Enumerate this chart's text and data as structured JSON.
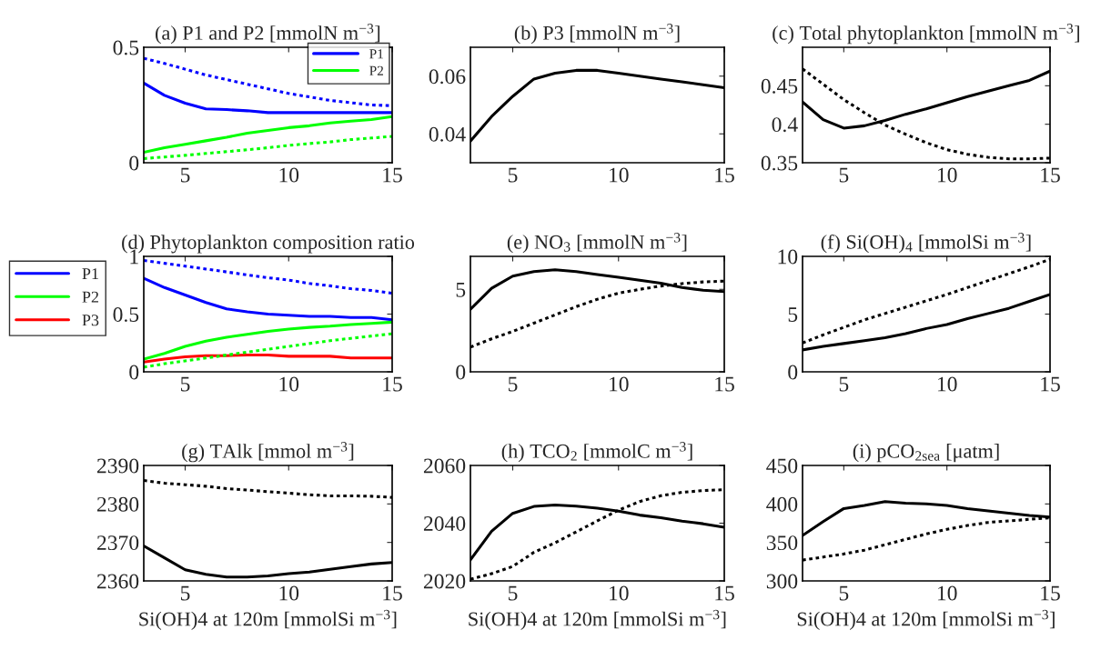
{
  "chart_data": [
    {
      "type": "line",
      "title": "(a) P1 and P2 [mmolN m$^{−3}$]",
      "x": [
        3,
        4,
        5,
        6,
        7,
        8,
        9,
        10,
        11,
        12,
        13,
        14,
        15
      ],
      "xlim": [
        3,
        15
      ],
      "xticks": [
        5,
        10,
        15
      ],
      "ylim": [
        0,
        0.5
      ],
      "yticks": [
        0,
        0.5
      ],
      "legend": "top right",
      "series": [
        {
          "name": "P1",
          "color": "#0000ff",
          "line_style": "solid",
          "values": [
            0.345,
            0.292,
            0.258,
            0.233,
            0.23,
            0.225,
            0.217,
            0.217,
            0.217,
            0.217,
            0.217,
            0.217,
            0.217
          ]
        },
        {
          "name": "P2",
          "color": "#00ff00",
          "line_style": "solid",
          "values": [
            0.045,
            0.065,
            0.08,
            0.095,
            0.11,
            0.128,
            0.14,
            0.152,
            0.16,
            0.172,
            0.18,
            0.187,
            0.2
          ]
        },
        {
          "color": "#0000ff",
          "line_style": "dotted",
          "values": [
            0.452,
            0.43,
            0.405,
            0.38,
            0.36,
            0.34,
            0.32,
            0.3,
            0.285,
            0.27,
            0.26,
            0.25,
            0.247
          ]
        },
        {
          "color": "#00ff00",
          "line_style": "dotted",
          "values": [
            0.018,
            0.025,
            0.032,
            0.04,
            0.048,
            0.056,
            0.065,
            0.075,
            0.083,
            0.09,
            0.1,
            0.107,
            0.114
          ]
        }
      ]
    },
    {
      "type": "line",
      "title": "(b) P3 [mmolN m$^{−3}$]",
      "x": [
        3,
        4,
        5,
        6,
        7,
        8,
        9,
        10,
        11,
        12,
        13,
        14,
        15
      ],
      "xlim": [
        3,
        15
      ],
      "xticks": [
        5,
        10,
        15
      ],
      "ylim": [
        0.03,
        0.07
      ],
      "yticks": [
        0.04,
        0.06
      ],
      "series": [
        {
          "color": "#000000",
          "line_style": "solid",
          "values": [
            0.0375,
            0.046,
            0.053,
            0.059,
            0.061,
            0.062,
            0.062,
            0.061,
            0.06,
            0.059,
            0.058,
            0.057,
            0.056
          ]
        }
      ]
    },
    {
      "type": "line",
      "title": "(c) Total phytoplankton [mmolN m$^{−3}$]",
      "x": [
        3,
        4,
        5,
        6,
        7,
        8,
        9,
        10,
        11,
        12,
        13,
        14,
        15
      ],
      "xlim": [
        3,
        15
      ],
      "xticks": [
        5,
        10,
        15
      ],
      "ylim": [
        0.35,
        0.5
      ],
      "yticks": [
        0.35,
        0.4,
        0.45
      ],
      "series": [
        {
          "color": "#000000",
          "line_style": "solid",
          "values": [
            0.429,
            0.406,
            0.395,
            0.398,
            0.405,
            0.413,
            0.42,
            0.428,
            0.436,
            0.443,
            0.45,
            0.457,
            0.469
          ]
        },
        {
          "color": "#000000",
          "line_style": "dotted",
          "values": [
            0.472,
            0.452,
            0.432,
            0.415,
            0.399,
            0.387,
            0.376,
            0.367,
            0.361,
            0.357,
            0.355,
            0.355,
            0.356
          ]
        }
      ]
    },
    {
      "type": "line",
      "title": "(d) Phytoplankton composition ratio",
      "x": [
        3,
        4,
        5,
        6,
        7,
        8,
        9,
        10,
        11,
        12,
        13,
        14,
        15
      ],
      "xlim": [
        3,
        15
      ],
      "xticks": [
        5,
        10,
        15
      ],
      "ylim": [
        0,
        1
      ],
      "yticks": [
        0,
        0.5,
        1
      ],
      "legend": "left",
      "series": [
        {
          "name": "P1",
          "color": "#0000ff",
          "line_style": "solid",
          "values": [
            0.81,
            0.73,
            0.665,
            0.6,
            0.545,
            0.52,
            0.5,
            0.49,
            0.48,
            0.48,
            0.47,
            0.47,
            0.45
          ]
        },
        {
          "name": "P2",
          "color": "#00ff00",
          "line_style": "solid",
          "values": [
            0.11,
            0.16,
            0.22,
            0.265,
            0.3,
            0.325,
            0.35,
            0.37,
            0.385,
            0.395,
            0.41,
            0.42,
            0.43
          ]
        },
        {
          "name": "P3",
          "color": "#ff0000",
          "line_style": "solid",
          "values": [
            0.085,
            0.11,
            0.13,
            0.14,
            0.14,
            0.145,
            0.145,
            0.135,
            0.135,
            0.135,
            0.12,
            0.12,
            0.12
          ]
        },
        {
          "color": "#0000ff",
          "line_style": "dotted",
          "values": [
            0.965,
            0.94,
            0.915,
            0.89,
            0.865,
            0.84,
            0.815,
            0.795,
            0.765,
            0.745,
            0.72,
            0.705,
            0.68
          ]
        },
        {
          "color": "#00ff00",
          "line_style": "dotted",
          "values": [
            0.04,
            0.07,
            0.095,
            0.12,
            0.145,
            0.17,
            0.195,
            0.22,
            0.245,
            0.27,
            0.29,
            0.31,
            0.33
          ]
        }
      ]
    },
    {
      "type": "line",
      "title": "(e) NO$_{3}$ [mmolN m$^{−3}$]",
      "x": [
        3,
        4,
        5,
        6,
        7,
        8,
        9,
        10,
        11,
        12,
        13,
        14,
        15
      ],
      "xlim": [
        3,
        15
      ],
      "xticks": [
        5,
        10,
        15
      ],
      "ylim": [
        0,
        7
      ],
      "yticks": [
        0,
        5
      ],
      "series": [
        {
          "color": "#000000",
          "line_style": "solid",
          "values": [
            3.8,
            5.06,
            5.8,
            6.08,
            6.19,
            6.08,
            5.9,
            5.73,
            5.55,
            5.38,
            5.11,
            4.95,
            4.86
          ]
        },
        {
          "color": "#000000",
          "line_style": "dotted",
          "values": [
            1.5,
            2.0,
            2.45,
            2.95,
            3.45,
            3.95,
            4.4,
            4.77,
            5.0,
            5.2,
            5.35,
            5.45,
            5.5
          ]
        }
      ]
    },
    {
      "type": "line",
      "title": "(f) Si(OH)$_{4}$ [mmolSi m$^{−3}$]",
      "x": [
        3,
        4,
        5,
        6,
        7,
        8,
        9,
        10,
        11,
        12,
        13,
        14,
        15
      ],
      "xlim": [
        3,
        15
      ],
      "xticks": [
        5,
        10,
        15
      ],
      "ylim": [
        0,
        10
      ],
      "yticks": [
        0,
        5,
        10
      ],
      "series": [
        {
          "color": "#000000",
          "line_style": "solid",
          "values": [
            1.9,
            2.2,
            2.45,
            2.7,
            2.95,
            3.3,
            3.75,
            4.1,
            4.6,
            5.05,
            5.5,
            6.1,
            6.7
          ]
        },
        {
          "color": "#000000",
          "line_style": "dotted",
          "values": [
            2.5,
            3.2,
            3.85,
            4.5,
            5.05,
            5.6,
            6.15,
            6.7,
            7.3,
            7.9,
            8.5,
            9.1,
            9.75
          ]
        }
      ]
    },
    {
      "type": "line",
      "title": "(g) TAlk [mmol m$^{−3}$]",
      "xlabel": "Si(OH)4 at 120m [mmolSi m$^{−3}$]",
      "x": [
        3,
        4,
        5,
        6,
        7,
        8,
        9,
        10,
        11,
        12,
        13,
        14,
        15
      ],
      "xlim": [
        3,
        15
      ],
      "xticks": [
        5,
        10,
        15
      ],
      "ylim": [
        2360,
        2390
      ],
      "yticks": [
        2360,
        2370,
        2380,
        2390
      ],
      "series": [
        {
          "color": "#000000",
          "line_style": "solid",
          "values": [
            2369.1,
            2366,
            2362.9,
            2361.7,
            2361,
            2361,
            2361.3,
            2361.9,
            2362.3,
            2363,
            2363.7,
            2364.4,
            2364.8
          ]
        },
        {
          "color": "#000000",
          "line_style": "dotted",
          "values": [
            2386.1,
            2385.4,
            2385,
            2384.6,
            2384,
            2383.6,
            2383.2,
            2382.8,
            2382.4,
            2382.1,
            2382.1,
            2382,
            2381.7
          ]
        }
      ]
    },
    {
      "type": "line",
      "title": "(h) TCO$_{2}$ [mmolC m$^{−3}$]",
      "xlabel": "Si(OH)4 at 120m [mmolSi m$^{−3}$]",
      "x": [
        3,
        4,
        5,
        6,
        7,
        8,
        9,
        10,
        11,
        12,
        13,
        14,
        15
      ],
      "xlim": [
        3,
        15
      ],
      "xticks": [
        5,
        10,
        15
      ],
      "ylim": [
        2020,
        2060
      ],
      "yticks": [
        2020,
        2040,
        2060
      ],
      "series": [
        {
          "color": "#000000",
          "line_style": "solid",
          "values": [
            2027.3,
            2037.2,
            2043.4,
            2045.8,
            2046.3,
            2045.9,
            2045.2,
            2044.2,
            2042.8,
            2041.9,
            2040.7,
            2039.8,
            2038.6
          ]
        },
        {
          "color": "#000000",
          "line_style": "dotted",
          "values": [
            2020.6,
            2022.5,
            2025,
            2029.9,
            2033.2,
            2037,
            2040.8,
            2044.5,
            2047.5,
            2049.5,
            2050.7,
            2051.3,
            2051.6
          ]
        }
      ]
    },
    {
      "type": "line",
      "title": "(i) pCO$_{2sea}$ [μatm]",
      "xlabel": "Si(OH)4 at 120m [mmolSi m$^{−3}$]",
      "x": [
        3,
        4,
        5,
        6,
        7,
        8,
        9,
        10,
        11,
        12,
        13,
        14,
        15
      ],
      "xlim": [
        3,
        15
      ],
      "xticks": [
        5,
        10,
        15
      ],
      "ylim": [
        300,
        450
      ],
      "yticks": [
        300,
        350,
        400,
        450
      ],
      "series": [
        {
          "color": "#000000",
          "line_style": "solid",
          "values": [
            359,
            377,
            394,
            398,
            403,
            401,
            400,
            398,
            394,
            391,
            388,
            385,
            383
          ]
        },
        {
          "color": "#000000",
          "line_style": "dotted",
          "values": [
            327,
            331,
            335,
            340,
            347,
            354,
            361,
            367,
            372,
            376,
            378,
            380,
            382
          ]
        }
      ]
    }
  ]
}
